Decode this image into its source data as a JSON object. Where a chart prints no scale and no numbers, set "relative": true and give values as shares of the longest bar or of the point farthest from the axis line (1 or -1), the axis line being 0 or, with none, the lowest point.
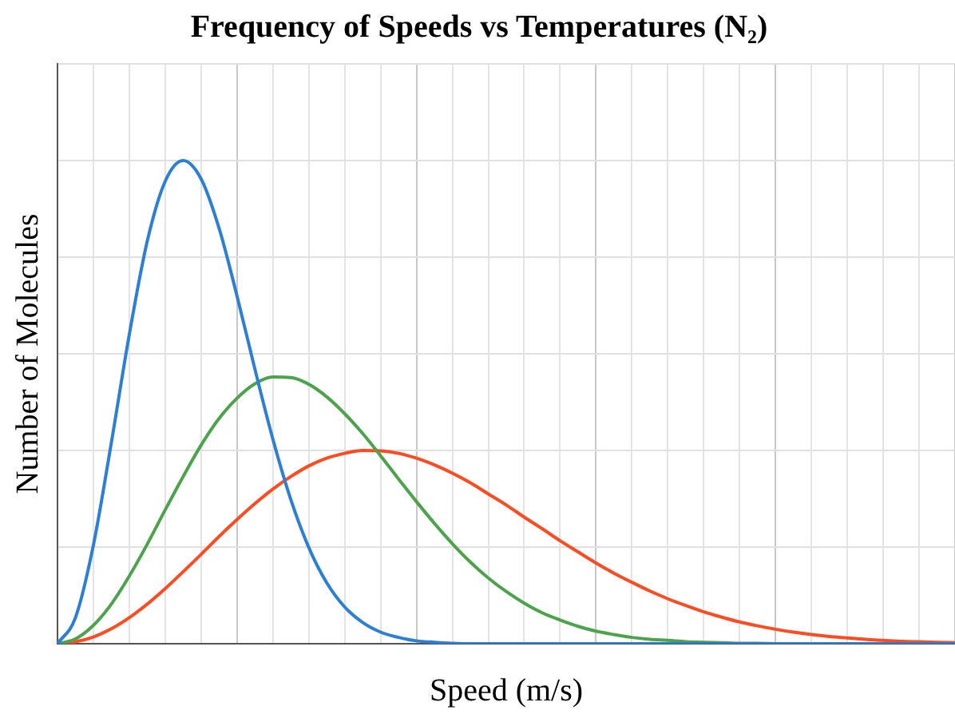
{
  "chart_data": {
    "type": "line",
    "title": "Frequency of Speeds vs Temperatures (N₂)",
    "xlabel": "Speed (m/s)",
    "ylabel": "Number of Molecules",
    "relative": true,
    "grid": true,
    "marker": "none",
    "line_style": "solid",
    "categories": [
      null,
      null,
      null,
      null,
      null,
      null,
      null,
      null,
      null,
      null,
      null,
      null,
      null,
      null,
      null,
      null,
      null,
      null,
      null,
      null,
      null,
      null,
      null,
      null,
      null,
      null,
      null,
      null,
      null,
      null,
      null,
      null,
      null,
      null,
      null,
      null,
      null,
      null,
      null,
      null,
      null,
      null,
      null,
      null,
      null,
      null,
      null,
      null,
      null,
      null,
      null
    ],
    "series": [
      {
        "color": "#2b7fd6",
        "values": [
          0,
          0.054,
          0.204,
          0.416,
          0.64,
          0.833,
          0.957,
          1,
          0.962,
          0.86,
          0.72,
          0.568,
          0.423,
          0.298,
          0.199,
          0.126,
          0.076,
          0.044,
          0.024,
          0.013,
          0.006,
          0.003,
          0.001,
          0,
          0,
          0,
          0,
          0,
          0,
          0,
          0,
          0,
          0,
          0,
          0,
          0,
          0,
          0,
          0,
          0,
          0,
          0,
          0,
          0,
          0,
          0,
          0,
          0,
          0,
          0,
          0
        ]
      },
      {
        "color": "#4ba34b",
        "values": [
          0,
          0.01,
          0.038,
          0.082,
          0.14,
          0.206,
          0.277,
          0.346,
          0.411,
          0.466,
          0.508,
          0.538,
          0.552,
          0.551,
          0.537,
          0.511,
          0.476,
          0.435,
          0.389,
          0.341,
          0.294,
          0.249,
          0.207,
          0.169,
          0.136,
          0.108,
          0.084,
          0.064,
          0.049,
          0.036,
          0.026,
          0.019,
          0.013,
          0.009,
          0.007,
          0.004,
          0.003,
          0.002,
          0.001,
          0.001,
          0,
          null,
          null,
          null,
          null,
          null,
          null,
          null,
          null,
          null,
          null
        ]
      },
      {
        "color": "#ff4b1f",
        "values": [
          0,
          0.004,
          0.014,
          0.031,
          0.054,
          0.082,
          0.114,
          0.149,
          0.185,
          0.222,
          0.257,
          0.29,
          0.32,
          0.346,
          0.368,
          0.384,
          0.394,
          0.4,
          0.399,
          0.394,
          0.384,
          0.37,
          0.353,
          0.333,
          0.31,
          0.287,
          0.262,
          0.238,
          0.213,
          0.19,
          0.167,
          0.146,
          0.127,
          0.109,
          0.093,
          0.079,
          0.066,
          0.055,
          0.045,
          0.037,
          0.03,
          0.024,
          0.019,
          0.015,
          0.012,
          0.009,
          0.007,
          0.005,
          0.004,
          0.003,
          0.002
        ]
      }
    ]
  }
}
